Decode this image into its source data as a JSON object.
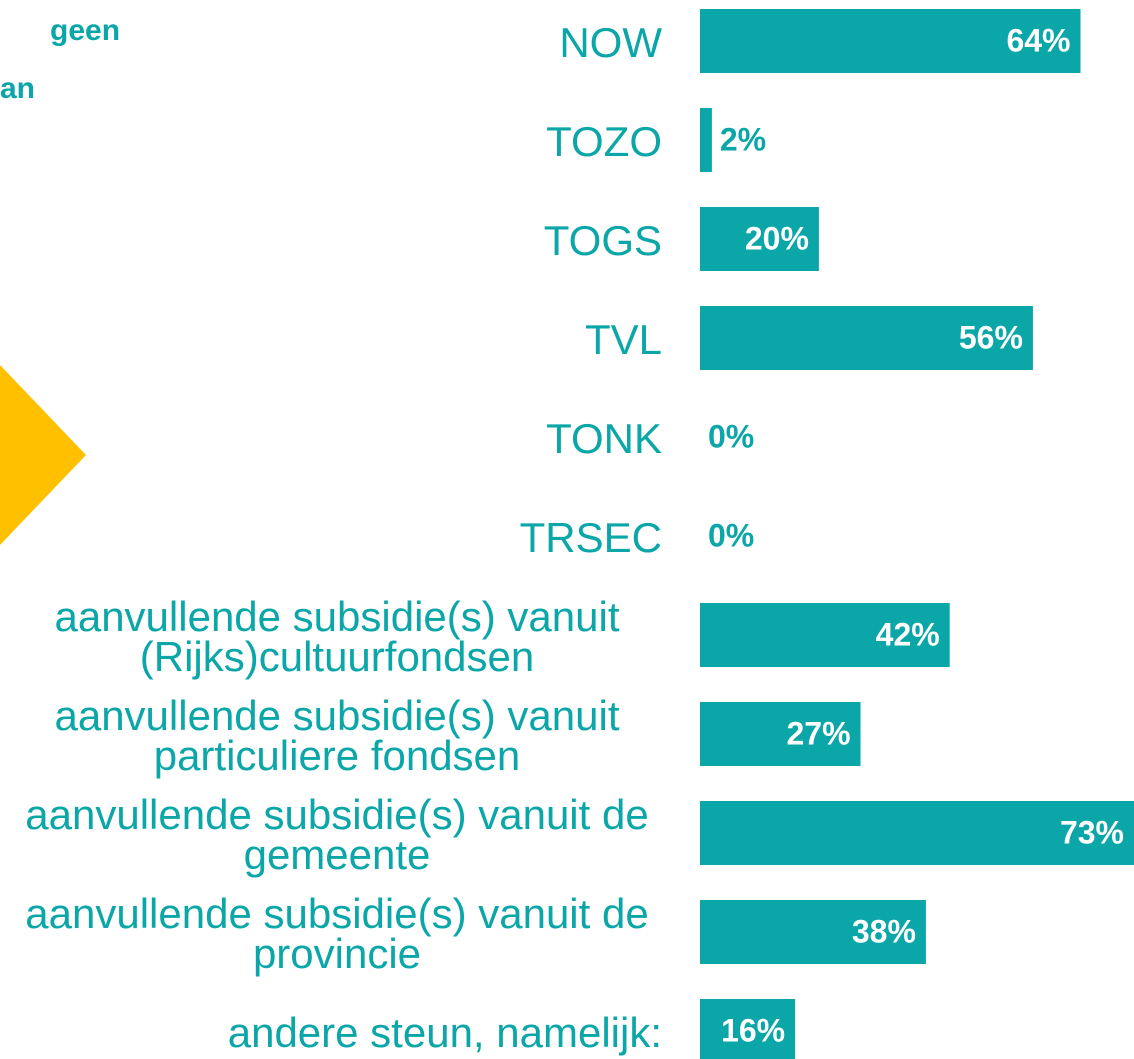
{
  "chart_data": {
    "type": "bar",
    "orientation": "horizontal",
    "annotations": [
      "geen",
      "an"
    ],
    "categories": [
      "NOW",
      "TOZO",
      "TOGS",
      "TVL",
      "TONK",
      "TRSEC",
      "aanvullende subsidie(s) vanuit (Rijks)cultuurfondsen",
      "aanvullende subsidie(s) vanuit particuliere fondsen",
      "aanvullende subsidie(s) vanuit de gemeente",
      "aanvullende subsidie(s) vanuit de provincie",
      "andere steun, namelijk:"
    ],
    "values": [
      64,
      2,
      20,
      56,
      0,
      0,
      42,
      27,
      73,
      38,
      16
    ],
    "value_labels": [
      "64%",
      "2%",
      "20%",
      "56%",
      "0%",
      "0%",
      "42%",
      "27%",
      "73%",
      "38%",
      "16%"
    ],
    "color": "#0aa6a8",
    "xlim": [
      0,
      73
    ]
  }
}
